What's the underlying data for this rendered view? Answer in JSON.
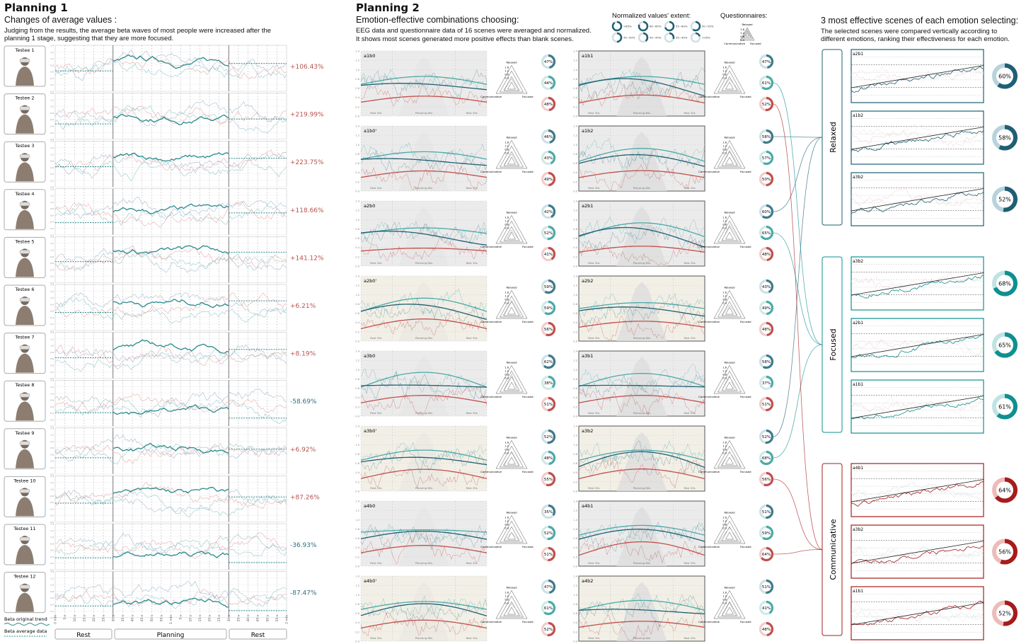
{
  "planning1": {
    "title": "Planning 1",
    "subtitle": "Changes of average values :",
    "description": "Judging from the results, the average beta waves of most people were increased after the planning 1 stage, suggesting that they are more focused.",
    "yticks": [
      "0.0",
      "0.2",
      "0.4",
      "0.6",
      "0.8",
      "1.0",
      "1.2",
      "1.4"
    ],
    "xticks": [
      "0 min",
      "5 s",
      "10 s",
      "15 s",
      "20 s",
      "25 s",
      "30 s",
      "35 s",
      "40 s",
      "45 s",
      "50 s",
      "55 s",
      "1 min",
      "5 s",
      "10 s",
      "15 s",
      "20 s",
      "25 s",
      "30 s",
      "35 s",
      "40 s",
      "45 s",
      "50 s",
      "55 s",
      "2 min"
    ],
    "phases": [
      "Rest",
      "Planning",
      "Rest"
    ],
    "legend": {
      "original": "Beta original trend",
      "average": "Beta average data"
    },
    "colors": {
      "increase": "#b85450",
      "decrease": "#2f6f80",
      "trend": "#2a8a8c"
    }
  },
  "planning2": {
    "title": "Planning 2",
    "subtitle": "Emotion-effective combinations choosing:",
    "description1": "EEG data and questionnaire data of 16 scenes were averaged and  normalized.",
    "description2": "It shows most scenes generated more positive effects than blank scenes.",
    "legend_title": "Normalized values' extent:",
    "legend_items": [
      ">65%",
      "60~65%",
      "55~60%",
      "50~55%",
      "45~50%",
      "40~45%",
      "35~40%",
      "<35%"
    ],
    "questionnaire_title": "Questionnaires:",
    "radar_labels": {
      "top": "Relaxed",
      "left": "Communicative",
      "right": "Focused"
    },
    "radar_ticks": [
      "1.6",
      "1.2",
      "0.8",
      "0.4"
    ],
    "chart_yticks": [
      "0.0",
      "0.2",
      "0.4",
      "0.6",
      "0.8",
      "1.0",
      "1.2",
      "1.4"
    ],
    "chart_phases": [
      "Rest 30s",
      "Planning 60s",
      "Rest 30s"
    ],
    "colors": {
      "relaxed": "#3d7a8c",
      "focused": "#4aaaa8",
      "communicative": "#c0504d"
    }
  },
  "selection": {
    "title": "3 most effective scenes of each emotion selecting:",
    "description1": "The selected scenes were compared vertically according to",
    "description2": "different emotions, ranking their effectiveness for each emotion.",
    "colors": {
      "Relaxed": "#1f5f73",
      "Focused": "#0f9090",
      "Communicative": "#a61c1c"
    }
  },
  "chart_data": [
    {
      "type": "table",
      "title": "",
      "columns": [
        "testee",
        "change"
      ],
      "rows": [
        [
          "Testee 1",
          "+106.43%"
        ],
        [
          "Testee 2",
          "+219.99%"
        ],
        [
          "Testee 3",
          "+223.75%"
        ],
        [
          "Testee 4",
          "+118.66%"
        ],
        [
          "Testee 5",
          "+141.12%"
        ],
        [
          "Testee 6",
          "+6.21%"
        ],
        [
          "Testee 7",
          "+8.19%"
        ],
        [
          "Testee 8",
          "-58.69%"
        ],
        [
          "Testee 9",
          "+6.92%"
        ],
        [
          "Testee 10",
          "+87.26%"
        ],
        [
          "Testee 11",
          "-36.93%"
        ],
        [
          "Testee 12",
          "-87.47%"
        ]
      ]
    },
    {
      "type": "table",
      "title": "",
      "columns": [
        "scene",
        "Relaxed",
        "Focused",
        "Communicative"
      ],
      "left": [
        [
          "a1b0",
          47,
          44,
          48
        ],
        [
          "a1b0'",
          46,
          43,
          49
        ],
        [
          "a2b0",
          42,
          52,
          41
        ],
        [
          "a2b0'",
          59,
          59,
          56
        ],
        [
          "a3b0",
          62,
          38,
          51
        ],
        [
          "a3b0'",
          52,
          48,
          55
        ],
        [
          "a4b0",
          35,
          52,
          51
        ],
        [
          "a4b0'",
          47,
          61,
          52
        ]
      ],
      "right": [
        [
          "a1b1",
          47,
          61,
          52
        ],
        [
          "a1b2",
          58,
          57,
          50
        ],
        [
          "a2b1",
          60,
          65,
          48
        ],
        [
          "a2b2",
          43,
          49,
          48
        ],
        [
          "a3b1",
          58,
          37,
          51
        ],
        [
          "a3b2",
          52,
          68,
          56
        ],
        [
          "a4b1",
          51,
          59,
          64
        ],
        [
          "a4b2",
          51,
          41,
          48
        ]
      ],
      "ylim": [
        0,
        1.4
      ]
    },
    {
      "type": "table",
      "title": "",
      "groups": [
        {
          "name": "Relaxed",
          "scenes": [
            [
              "a2b1",
              60
            ],
            [
              "a1b2",
              58
            ],
            [
              "a3b2",
              52
            ]
          ]
        },
        {
          "name": "Focused",
          "scenes": [
            [
              "a3b2",
              68
            ],
            [
              "a2b1",
              65
            ],
            [
              "a1b1",
              61
            ]
          ]
        },
        {
          "name": "Communicative",
          "scenes": [
            [
              "a4b1",
              64
            ],
            [
              "a3b2",
              56
            ],
            [
              "a1b1",
              52
            ]
          ]
        }
      ]
    }
  ]
}
